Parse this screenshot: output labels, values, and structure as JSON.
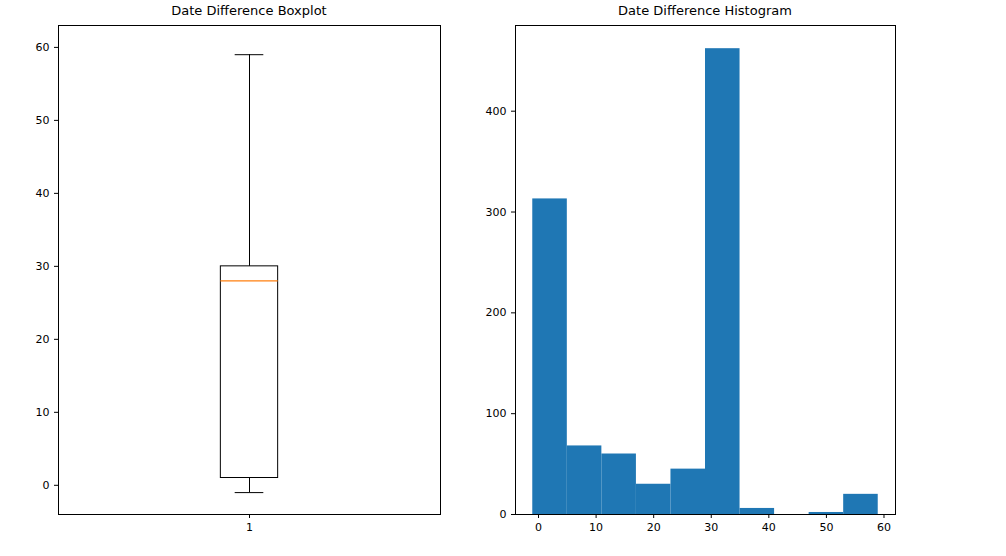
{
  "chart_data": [
    {
      "type": "box",
      "title": "Date Difference Boxplot",
      "x": [
        1
      ],
      "stats": [
        {
          "whislo": -1,
          "q1": 1,
          "med": 28,
          "q3": 30,
          "whishi": 59
        }
      ],
      "xlim": [
        0.5,
        1.5
      ],
      "xticks": [
        1
      ],
      "ylim": [
        -4,
        63
      ],
      "yticks": [
        0,
        10,
        20,
        30,
        40,
        50,
        60
      ],
      "grid": false
    },
    {
      "type": "histogram",
      "title": "Date Difference Histogram",
      "bins": [
        -1,
        5,
        11,
        17,
        23,
        29,
        35,
        41,
        47,
        53,
        59
      ],
      "values": [
        313,
        68,
        60,
        30,
        45,
        462,
        6,
        0,
        2,
        20
      ],
      "color": "#1f77b4",
      "xlim": [
        -4,
        62
      ],
      "xticks": [
        0,
        10,
        20,
        30,
        40,
        50,
        60
      ],
      "ylim": [
        0,
        485
      ],
      "yticks": [
        0,
        100,
        200,
        300,
        400
      ],
      "grid": false
    }
  ]
}
